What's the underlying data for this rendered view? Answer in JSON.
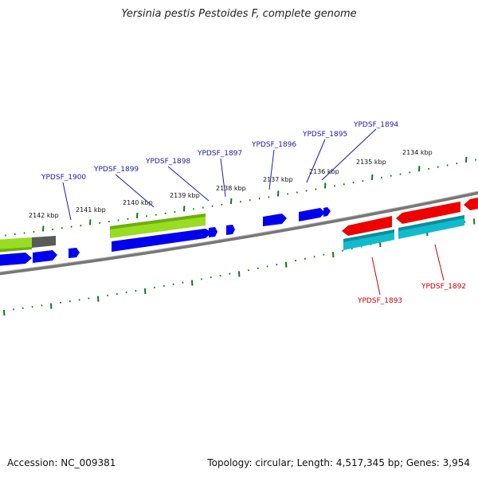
{
  "title": "Yersinia pestis Pestoides F, complete genome",
  "footer": {
    "accession": "Accession: NC_009381",
    "stats": "Topology: circular; Length: 4,517,345 bp; Genes: 3,954"
  },
  "colors": {
    "backbone": "#7a7a7a",
    "ticks": "#0a7a14",
    "cds": "#0000ee",
    "gene_green": "#99dd22",
    "gene_gray": "#555555",
    "rna_red": "#ee0000",
    "rna_cyan": "#11bbcc",
    "label_blue": "#1a1aaa",
    "label_red": "#cc0000"
  },
  "kbp_labels": [
    {
      "text": "2142 kbp"
    },
    {
      "text": "2141 kbp"
    },
    {
      "text": "2140 kbp"
    },
    {
      "text": "2139 kbp"
    },
    {
      "text": "2138 kbp"
    },
    {
      "text": "2137 kbp"
    },
    {
      "text": "2136 kbp"
    },
    {
      "text": "2135 kbp"
    },
    {
      "text": "2134 kbp"
    }
  ],
  "gene_labels": [
    {
      "text": "YPDSF_1900",
      "strand": "top"
    },
    {
      "text": "YPDSF_1899",
      "strand": "top"
    },
    {
      "text": "YPDSF_1898",
      "strand": "top"
    },
    {
      "text": "YPDSF_1897",
      "strand": "top"
    },
    {
      "text": "YPDSF_1896",
      "strand": "top"
    },
    {
      "text": "YPDSF_1895",
      "strand": "top"
    },
    {
      "text": "YPDSF_1894",
      "strand": "top"
    },
    {
      "text": "YPDSF_1893",
      "strand": "bottom"
    },
    {
      "text": "YPDSF_1892",
      "strand": "bottom"
    }
  ]
}
